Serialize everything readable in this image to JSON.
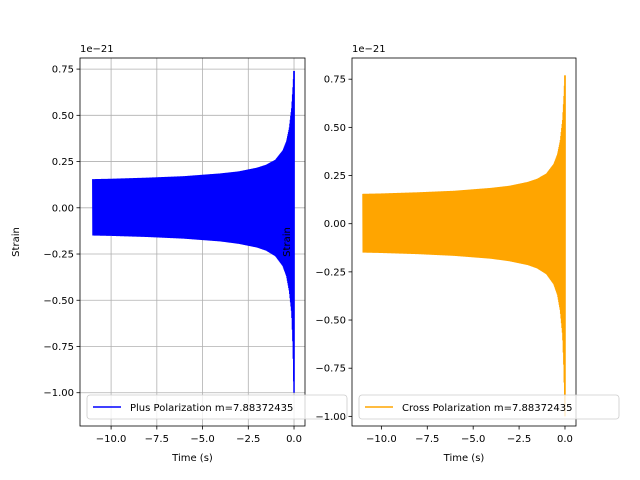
{
  "chart_data": [
    {
      "type": "line",
      "xlabel": "Time (s)",
      "ylabel": "Strain",
      "offset_text": "1e−21",
      "xlim": [
        -11.7,
        0.6
      ],
      "ylim": [
        -1.18,
        0.81
      ],
      "xticks": [
        -10.0,
        -7.5,
        -5.0,
        -2.5,
        0.0
      ],
      "xtick_labels": [
        "−10.0",
        "−7.5",
        "−5.0",
        "−2.5",
        "0.0"
      ],
      "yticks": [
        -1.0,
        -0.75,
        -0.5,
        -0.25,
        0.0,
        0.25,
        0.5,
        0.75
      ],
      "ytick_labels": [
        "−1.00",
        "−0.75",
        "−0.50",
        "−0.25",
        "0.00",
        "0.25",
        "0.50",
        "0.75"
      ],
      "grid": true,
      "legend_position": "lower-left",
      "series": [
        {
          "name": "Plus Polarization m=7.88372435",
          "color": "#0000ff",
          "envelope_t": [
            -11.0,
            -10.0,
            -8.0,
            -6.0,
            -4.0,
            -3.0,
            -2.0,
            -1.5,
            -1.0,
            -0.6,
            -0.4,
            -0.25,
            -0.12,
            -0.05,
            0.0
          ],
          "envelope_upper": [
            0.155,
            0.157,
            0.163,
            0.171,
            0.186,
            0.197,
            0.217,
            0.233,
            0.26,
            0.31,
            0.36,
            0.43,
            0.54,
            0.65,
            0.74
          ],
          "envelope_lower": [
            -0.15,
            -0.152,
            -0.158,
            -0.167,
            -0.182,
            -0.195,
            -0.215,
            -0.232,
            -0.262,
            -0.315,
            -0.37,
            -0.45,
            -0.57,
            -0.75,
            -1.0
          ]
        }
      ]
    },
    {
      "type": "line",
      "xlabel": "Time (s)",
      "ylabel": "Strain",
      "offset_text": "1e−21",
      "xlim": [
        -11.6,
        0.6
      ],
      "ylim": [
        -1.05,
        0.86
      ],
      "xticks": [
        -10.0,
        -7.5,
        -5.0,
        -2.5,
        0.0
      ],
      "xtick_labels": [
        "−10.0",
        "−7.5",
        "−5.0",
        "−2.5",
        "0.0"
      ],
      "yticks": [
        -1.0,
        -0.75,
        -0.5,
        -0.25,
        0.0,
        0.25,
        0.5,
        0.75
      ],
      "ytick_labels": [
        "−1.00",
        "−0.75",
        "−0.50",
        "−0.25",
        "0.00",
        "0.25",
        "0.50",
        "0.75"
      ],
      "grid": false,
      "legend_position": "lower-left",
      "series": [
        {
          "name": "Cross Polarization m=7.88372435",
          "color": "#ffa500",
          "envelope_t": [
            -11.0,
            -10.0,
            -8.0,
            -6.0,
            -4.0,
            -3.0,
            -2.0,
            -1.5,
            -1.0,
            -0.6,
            -0.4,
            -0.25,
            -0.12,
            -0.05,
            0.0
          ],
          "envelope_upper": [
            0.155,
            0.157,
            0.163,
            0.171,
            0.186,
            0.197,
            0.217,
            0.233,
            0.26,
            0.31,
            0.36,
            0.43,
            0.54,
            0.66,
            0.77
          ],
          "envelope_lower": [
            -0.15,
            -0.152,
            -0.158,
            -0.167,
            -0.182,
            -0.195,
            -0.215,
            -0.232,
            -0.262,
            -0.315,
            -0.37,
            -0.45,
            -0.58,
            -0.76,
            -1.0
          ]
        }
      ]
    }
  ]
}
